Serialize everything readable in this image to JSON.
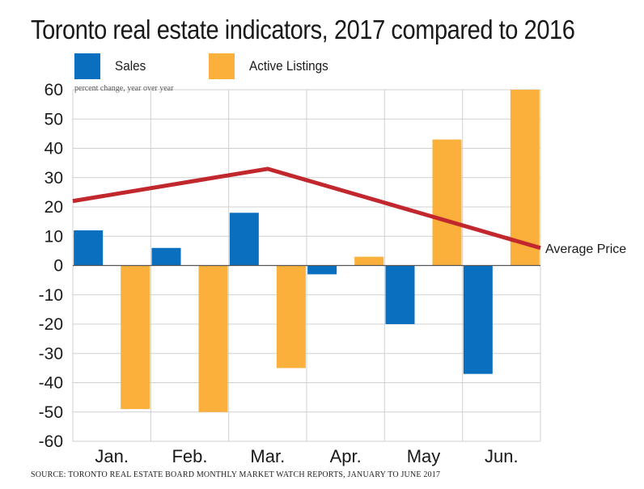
{
  "chart_data": {
    "type": "bar",
    "title": "Toronto real estate indicators, 2017 compared to 2016",
    "ylabel": "percent change, year over year",
    "xlabel": "",
    "categories": [
      "Jan.",
      "Feb.",
      "Mar.",
      "Apr.",
      "May",
      "Jun."
    ],
    "series": [
      {
        "name": "Sales",
        "type": "bar",
        "color": "#0a6fbf",
        "values": [
          12,
          6,
          18,
          -3,
          -20,
          -37
        ]
      },
      {
        "name": "Active Listings",
        "type": "bar",
        "color": "#fbb03b",
        "values": [
          -49,
          -50,
          -35,
          3,
          43,
          60
        ]
      },
      {
        "name": "Average Price",
        "type": "line",
        "color": "#c1272d",
        "x": [
          -0.5,
          2,
          5.5
        ],
        "values": [
          22,
          33,
          6
        ]
      }
    ],
    "ylim": [
      -60,
      60
    ],
    "yticks": [
      "60",
      "50",
      "40",
      "30",
      "20",
      "10",
      "0",
      "-10",
      "-20",
      "-30",
      "-40",
      "-50",
      "-60"
    ],
    "grid": true,
    "legend_position": "top-left"
  },
  "source_note": "SOURCE: TORONTO REAL ESTATE BOARD  MONTHLY MARKET WATCH REPORTS, JANUARY TO JUNE 2017"
}
